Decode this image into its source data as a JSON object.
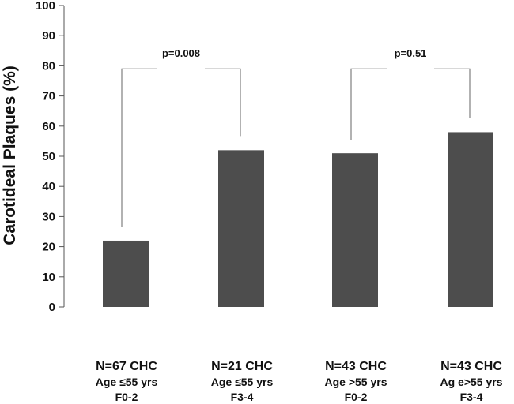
{
  "chart_data": {
    "type": "bar",
    "ylabel": "Carotideal Plaques (%)",
    "ylim": [
      0,
      100
    ],
    "yticks": [
      "0",
      "10",
      "20",
      "30",
      "40",
      "50",
      "60",
      "70",
      "80",
      "90",
      "100"
    ],
    "grid": false,
    "bar_color": "#4d4d4d",
    "categories": [
      {
        "line1": "N=67 CHC",
        "line2": "Age ≤55 yrs",
        "line3": "F0-2"
      },
      {
        "line1": "N=21 CHC",
        "line2": "Age ≤55 yrs",
        "line3": "F3-4"
      },
      {
        "line1": "N=43 CHC",
        "line2": "Age >55 yrs",
        "line3": "F0-2"
      },
      {
        "line1": "N=43 CHC",
        "line2": "Ag e>55 yrs",
        "line3": "F3-4"
      }
    ],
    "values": [
      22,
      52,
      51,
      58
    ],
    "comparisons": [
      {
        "between": [
          0,
          1
        ],
        "label": "p=0.008",
        "bracket_level": 79
      },
      {
        "between": [
          2,
          3
        ],
        "label": "p=0.51",
        "bracket_level": 79
      }
    ]
  }
}
